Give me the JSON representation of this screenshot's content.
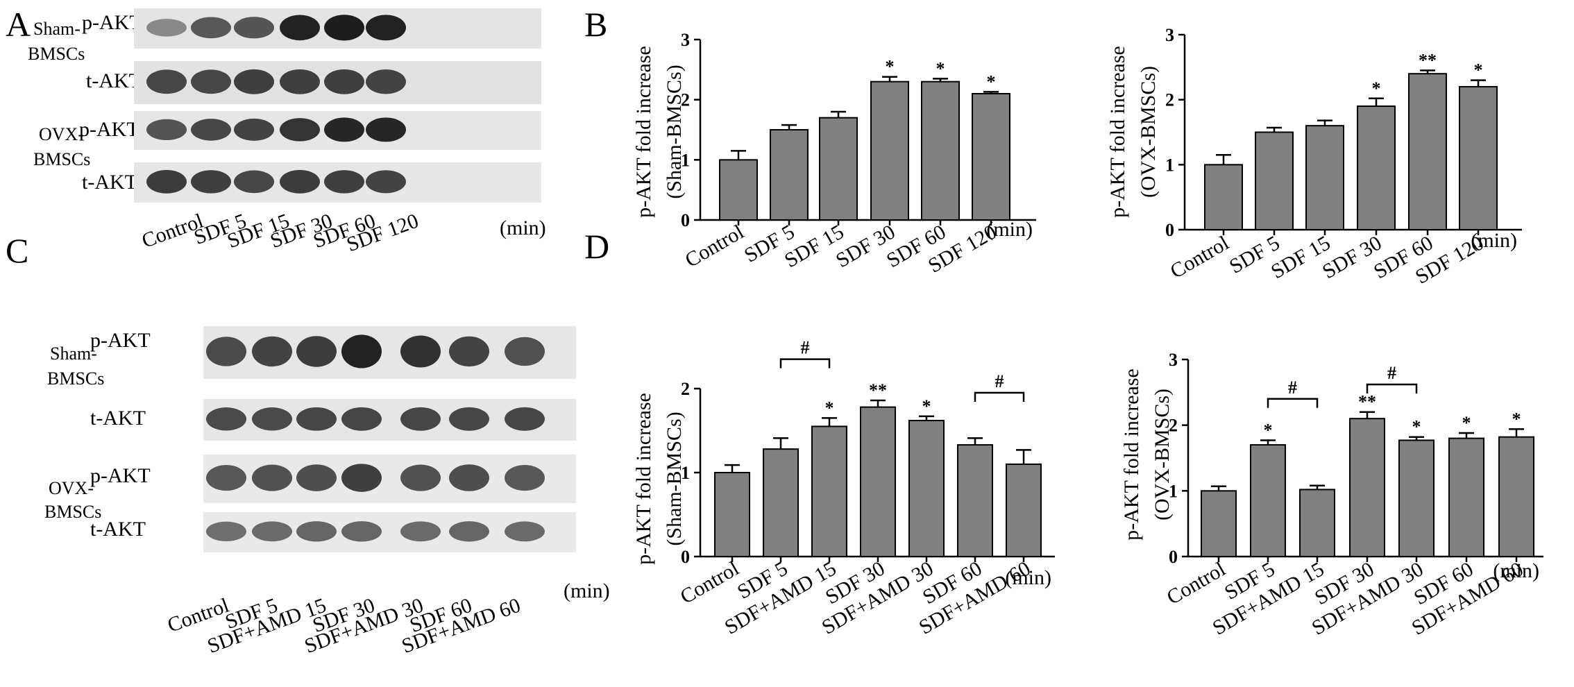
{
  "panels": {
    "A": {
      "letter": "A",
      "group_labels": [
        {
          "line1": "Sham-",
          "line2": "BMSCs"
        },
        {
          "line1": "OVX-",
          "line2": "BMSCs"
        }
      ],
      "strip_labels": [
        "p-AKT",
        "t-AKT",
        "p-AKT",
        "t-AKT"
      ],
      "band_intensity": [
        [
          0.35,
          0.62,
          0.64,
          0.92,
          0.95,
          0.93
        ],
        [
          0.72,
          0.72,
          0.76,
          0.76,
          0.76,
          0.74
        ],
        [
          0.65,
          0.72,
          0.74,
          0.82,
          0.9,
          0.9
        ],
        [
          0.78,
          0.76,
          0.72,
          0.78,
          0.76,
          0.74
        ]
      ],
      "lanes": [
        "Control",
        "SDF 5",
        "SDF 15",
        "SDF 30",
        "SDF 60",
        "SDF 120"
      ],
      "unit": "(min)"
    },
    "B": {
      "letter": "B"
    },
    "C": {
      "letter": "C",
      "group_labels": [
        {
          "line1": "Sham-",
          "line2": "BMSCs"
        },
        {
          "line1": "OVX-",
          "line2": "BMSCs"
        }
      ],
      "strip_labels": [
        "p-AKT",
        "t-AKT",
        "p-AKT",
        "t-AKT"
      ],
      "band_intensity": [
        [
          0.7,
          0.74,
          0.78,
          0.92,
          0.84,
          0.74,
          0.66
        ],
        [
          0.7,
          0.7,
          0.72,
          0.72,
          0.72,
          0.72,
          0.72
        ],
        [
          0.62,
          0.66,
          0.68,
          0.76,
          0.66,
          0.68,
          0.62
        ],
        [
          0.5,
          0.52,
          0.55,
          0.55,
          0.52,
          0.55,
          0.52
        ]
      ],
      "lanes": [
        "Control",
        "SDF 5",
        "SDF+AMD 15",
        "SDF 30",
        "SDF+AMD 30",
        "SDF 60",
        "SDF+AMD 60"
      ],
      "unit": "(min)"
    },
    "D": {
      "letter": "D"
    }
  },
  "chart_data": [
    {
      "type": "bar",
      "panel": "B",
      "categories": [
        "Control",
        "SDF 5",
        "SDF 15",
        "SDF 30",
        "SDF 60",
        "SDF 120"
      ],
      "values": [
        1.0,
        1.5,
        1.7,
        2.3,
        2.3,
        2.1
      ],
      "errors": [
        0.15,
        0.08,
        0.1,
        0.08,
        0.05,
        0.03
      ],
      "significance": [
        "",
        "",
        "",
        "*",
        "*",
        "*"
      ],
      "ylabel_line1": "p-AKT fold increase",
      "ylabel_line2": "(Sham-BMSCs)",
      "ylim": [
        0,
        3
      ],
      "yticks": [
        0,
        1,
        2,
        3
      ],
      "unit": "(min)",
      "bar_color": "#808080"
    },
    {
      "type": "bar",
      "panel": "B",
      "categories": [
        "Control",
        "SDF 5",
        "SDF 15",
        "SDF 30",
        "SDF 60",
        "SDF 120"
      ],
      "values": [
        1.0,
        1.5,
        1.6,
        1.9,
        2.4,
        2.2
      ],
      "errors": [
        0.15,
        0.07,
        0.08,
        0.12,
        0.05,
        0.1
      ],
      "significance": [
        "",
        "",
        "",
        "*",
        "**",
        "*"
      ],
      "ylabel_line1": "p-AKT fold increase",
      "ylabel_line2": "(OVX-BMSCs)",
      "ylim": [
        0,
        3
      ],
      "yticks": [
        0,
        1,
        2,
        3
      ],
      "unit": "(min)",
      "bar_color": "#808080"
    },
    {
      "type": "bar",
      "panel": "D",
      "categories": [
        "Control",
        "SDF 5",
        "SDF+AMD 15",
        "SDF 30",
        "SDF+AMD 30",
        "SDF 60",
        "SDF+AMD 60"
      ],
      "values": [
        1.0,
        1.28,
        1.55,
        1.78,
        1.62,
        1.33,
        1.1
      ],
      "errors": [
        0.09,
        0.13,
        0.1,
        0.08,
        0.05,
        0.08,
        0.17
      ],
      "significance": [
        "",
        "",
        "*",
        "**",
        "*",
        "",
        ""
      ],
      "brackets": [
        {
          "from": 1,
          "to": 2,
          "label": "#",
          "level": 2.35
        },
        {
          "from": 5,
          "to": 6,
          "label": "#",
          "level": 1.95
        }
      ],
      "ylabel_line1": "p-AKT fold increase",
      "ylabel_line2": "(Sham-BMSCs)",
      "ylim": [
        0,
        2
      ],
      "yticks": [
        0,
        1,
        2
      ],
      "unit": "(min)",
      "bar_color": "#808080"
    },
    {
      "type": "bar",
      "panel": "D",
      "categories": [
        "Control",
        "SDF 5",
        "SDF+AMD 15",
        "SDF 30",
        "SDF+AMD 30",
        "SDF 60",
        "SDF+AMD 60"
      ],
      "values": [
        1.0,
        1.7,
        1.02,
        2.1,
        1.77,
        1.8,
        1.82
      ],
      "errors": [
        0.07,
        0.07,
        0.06,
        0.1,
        0.05,
        0.08,
        0.12
      ],
      "significance": [
        "",
        "*",
        "",
        "**",
        "*",
        "*",
        "*"
      ],
      "brackets": [
        {
          "from": 1,
          "to": 2,
          "label": "#",
          "level": 2.4
        },
        {
          "from": 3,
          "to": 4,
          "label": "#",
          "level": 2.62
        }
      ],
      "ylabel_line1": "p-AKT fold increase",
      "ylabel_line2": "(OVX-BMSCs)",
      "ylim": [
        0,
        3
      ],
      "yticks": [
        0,
        1,
        2,
        3
      ],
      "unit": "(min)",
      "bar_color": "#808080"
    }
  ]
}
